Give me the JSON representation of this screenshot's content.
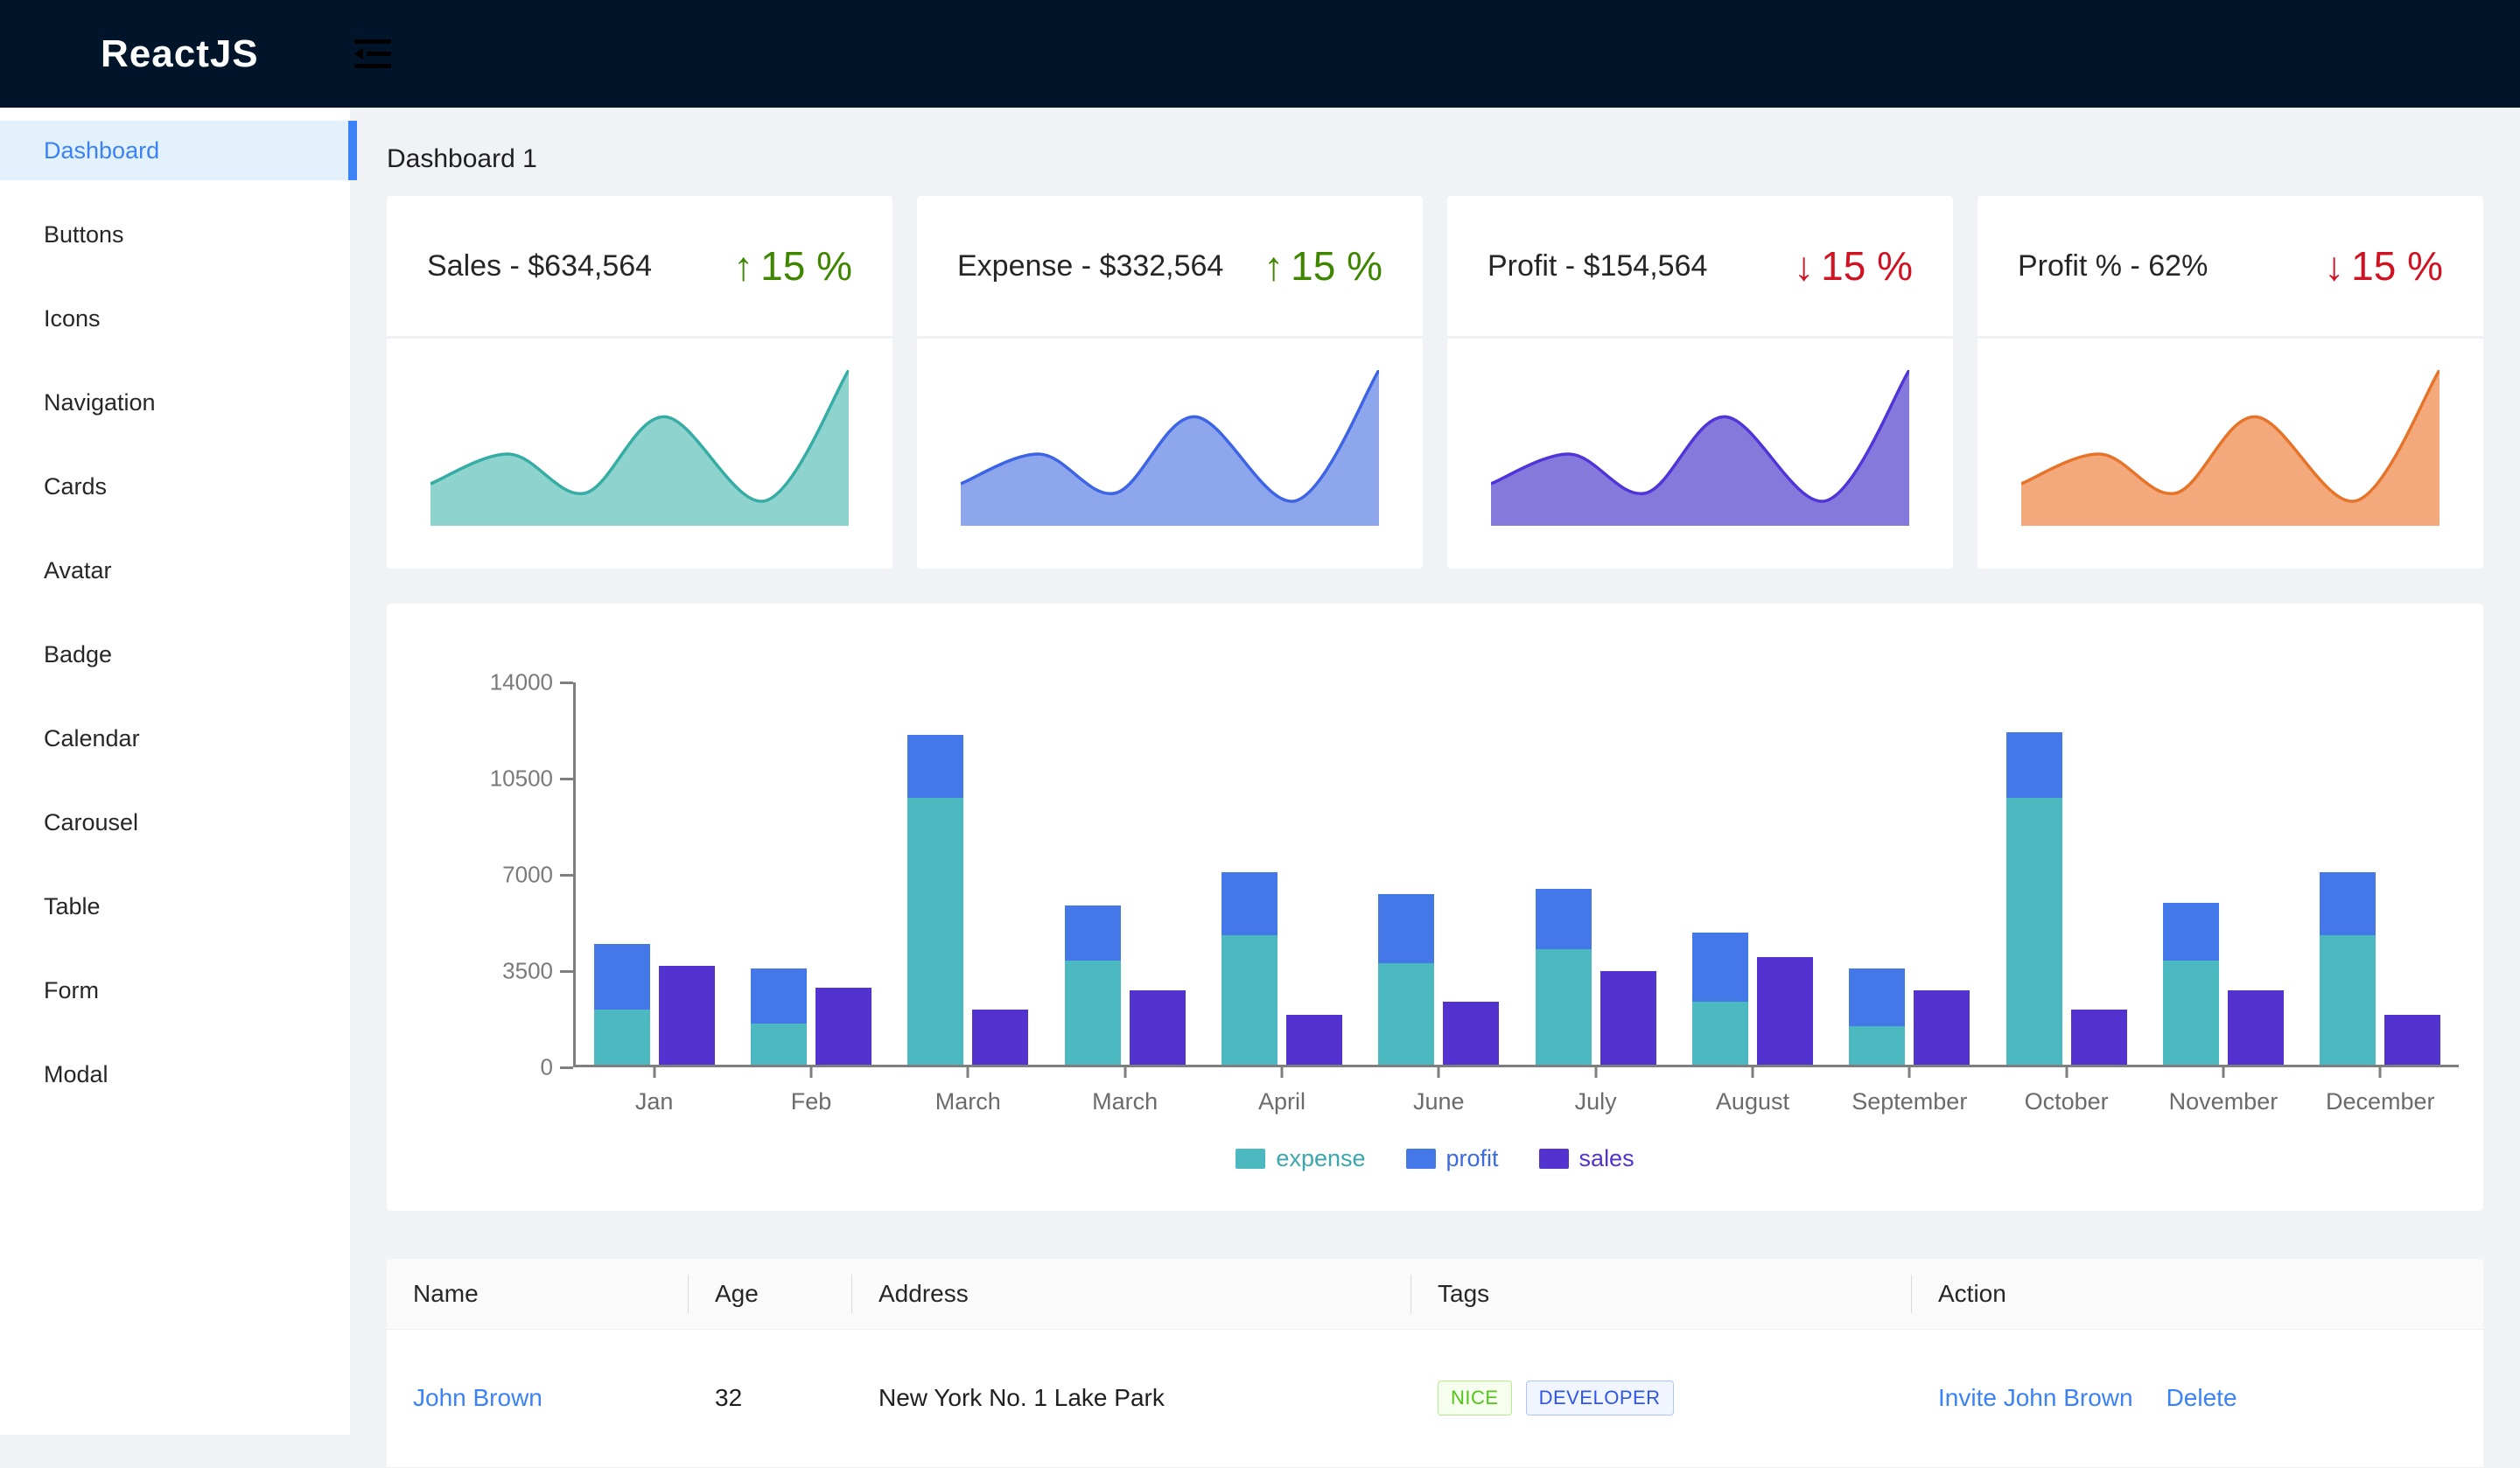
{
  "header": {
    "logo": "ReactJS",
    "trigger_icon": "menu-fold-icon"
  },
  "sidebar": {
    "active_index": 0,
    "items": [
      {
        "label": "Dashboard"
      },
      {
        "label": "Buttons"
      },
      {
        "label": "Icons"
      },
      {
        "label": "Navigation"
      },
      {
        "label": "Cards"
      },
      {
        "label": "Avatar"
      },
      {
        "label": "Badge"
      },
      {
        "label": "Calendar"
      },
      {
        "label": "Carousel"
      },
      {
        "label": "Table"
      },
      {
        "label": "Form"
      },
      {
        "label": "Modal"
      }
    ]
  },
  "page": {
    "title": "Dashboard 1"
  },
  "colors": {
    "header_bg": "#001529",
    "page_bg": "#f0f2f5",
    "accent_blue": "#3b82f6",
    "positive_green": "#3f8600",
    "negative_red": "#cf1322"
  },
  "stat_cards": [
    {
      "title": "Sales - $634,564",
      "delta": "15 %",
      "trend": "up",
      "arrow_glyph": "↑",
      "delta_color": "#3f8600",
      "spark_fill": "#8ed3cd",
      "spark_stroke": "#35ada4"
    },
    {
      "title": "Expense - $332,564",
      "delta": "15 %",
      "trend": "up",
      "arrow_glyph": "↑",
      "delta_color": "#3f8600",
      "spark_fill": "#8da6ec",
      "spark_stroke": "#3c64e4"
    },
    {
      "title": "Profit - $154,564",
      "delta": "15 %",
      "trend": "down",
      "arrow_glyph": "↓",
      "delta_color": "#cf1322",
      "spark_fill": "#8679dc",
      "spark_stroke": "#5134d8"
    },
    {
      "title": "Profit % - 62%",
      "delta": "15 %",
      "trend": "down",
      "arrow_glyph": "↓",
      "delta_color": "#cf1322",
      "spark_fill": "#f3a97b",
      "spark_stroke": "#e6732a"
    }
  ],
  "sparkline": {
    "x": [
      0,
      19,
      37,
      56,
      80,
      100
    ],
    "heights": [
      27,
      46,
      21,
      70,
      16,
      100
    ]
  },
  "chart_data": {
    "type": "bar",
    "layout": "expense and profit stacked in one bar, sales as separate bar per category",
    "categories": [
      "Jan",
      "Feb",
      "March",
      "March",
      "April",
      "June",
      "July",
      "August",
      "September",
      "October",
      "November",
      "December"
    ],
    "series": [
      {
        "name": "expense",
        "color": "#4cb8bf",
        "values": [
          2000,
          1500,
          9700,
          3800,
          4700,
          3700,
          4200,
          2300,
          1400,
          9700,
          3800,
          4700
        ]
      },
      {
        "name": "profit",
        "color": "#4478e8",
        "values": [
          2400,
          2000,
          2300,
          2000,
          2300,
          2500,
          2200,
          2500,
          2100,
          2400,
          2100,
          2300
        ]
      },
      {
        "name": "sales",
        "color": "#5233d0",
        "values": [
          3600,
          2800,
          2000,
          2700,
          1800,
          2300,
          3400,
          3900,
          2700,
          2000,
          2700,
          1800
        ]
      }
    ],
    "title": "",
    "xlabel": "",
    "ylabel": "",
    "ylim": [
      0,
      14000
    ],
    "yticks": [
      0,
      3500,
      7000,
      10500,
      14000
    ],
    "grid": false,
    "legend_position": "bottom",
    "legend_text_colors": {
      "expense": "#3aa7ad",
      "profit": "#3c6ae0",
      "sales": "#5233d0"
    }
  },
  "table": {
    "columns": [
      "Name",
      "Age",
      "Address",
      "Tags",
      "Action"
    ],
    "rows": [
      {
        "name": "John Brown",
        "age": "32",
        "address": "New York No. 1 Lake Park",
        "tags": [
          {
            "label": "NICE",
            "type": "green"
          },
          {
            "label": "DEVELOPER",
            "type": "geekblue"
          }
        ],
        "actions": [
          "Invite John Brown",
          "Delete"
        ]
      }
    ]
  }
}
